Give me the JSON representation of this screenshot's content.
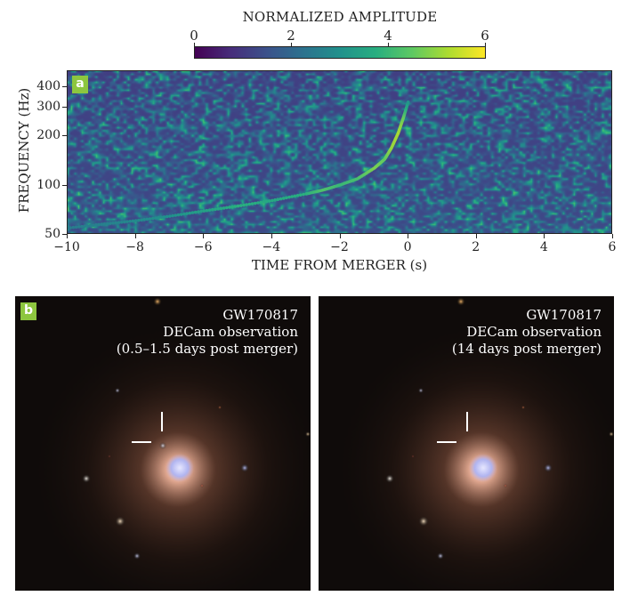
{
  "colorbar": {
    "title": "NORMALIZED AMPLITUDE",
    "ticks": [
      "0",
      "2",
      "4",
      "6"
    ],
    "range": [
      0,
      6
    ],
    "colormap": [
      "#440154",
      "#472d7b",
      "#3b528b",
      "#2c728e",
      "#21918c",
      "#28ae80",
      "#5ec962",
      "#addc30",
      "#fde725"
    ]
  },
  "panel_a": {
    "tag": "a"
  },
  "chart_data": {
    "type": "heatmap",
    "title": "",
    "xlabel": "TIME FROM MERGER (s)",
    "ylabel": "FREQUENCY (Hz)",
    "xlim": [
      -10,
      6
    ],
    "ylim": [
      50,
      500
    ],
    "yscale": "log",
    "xticks": [
      "−10",
      "−8",
      "−6",
      "−4",
      "−2",
      "0",
      "2",
      "4",
      "6"
    ],
    "xtick_values": [
      -10,
      -8,
      -6,
      -4,
      -2,
      0,
      2,
      4,
      6
    ],
    "yticks": [
      "50",
      "100",
      "200",
      "300",
      "400"
    ],
    "ytick_values": [
      50,
      100,
      200,
      300,
      400
    ],
    "colorbar_label": "NORMALIZED AMPLITUDE",
    "chirp_track": {
      "t": [
        -10,
        -9,
        -8,
        -7,
        -6,
        -5,
        -4,
        -3,
        -2.5,
        -2,
        -1.5,
        -1,
        -0.7,
        -0.5,
        -0.3,
        -0.15,
        0
      ],
      "f": [
        55,
        58,
        61,
        65,
        70,
        75,
        81,
        89,
        94,
        101,
        110,
        128,
        145,
        170,
        210,
        260,
        330
      ],
      "amplitude": [
        2.5,
        2.6,
        2.8,
        3.0,
        3.4,
        3.8,
        3.6,
        3.8,
        4.3,
        4.0,
        4.2,
        4.8,
        4.5,
        5.0,
        5.2,
        4.6,
        3.0
      ]
    }
  },
  "panel_b": {
    "tag": "b",
    "left": {
      "lines": [
        "GW170817",
        "DECam observation",
        "(0.5–1.5 days post merger)"
      ]
    },
    "right": {
      "lines": [
        "GW170817",
        "DECam observation",
        "(14 days post merger)"
      ]
    }
  }
}
